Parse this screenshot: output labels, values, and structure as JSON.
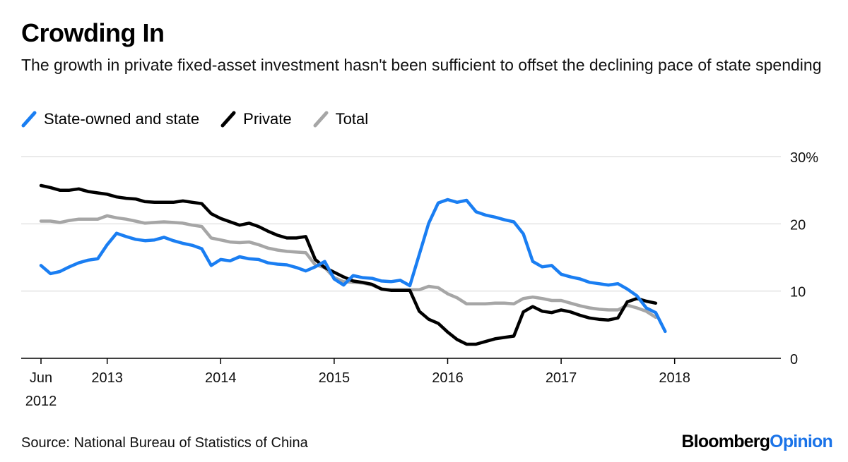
{
  "header": {
    "title": "Crowding In",
    "subtitle": "The growth in private fixed-asset investment hasn't been sufficient to offset the declining pace of state spending"
  },
  "footer": {
    "source": "Source: National Bureau of Statistics of China",
    "brand_part1": "Bloomberg",
    "brand_part2": "Opinion"
  },
  "colors": {
    "state": "#1a7ef2",
    "private": "#000000",
    "total": "#a6a6a6",
    "grid": "#e3e3e3",
    "brand_accent": "#1a73e8"
  },
  "chart_data": {
    "type": "line",
    "title": "Crowding In",
    "xlabel": "",
    "ylabel": "",
    "ylim": [
      0,
      30
    ],
    "y_ticks": [
      0,
      10,
      20,
      30
    ],
    "y_tick_labels": [
      "0",
      "10",
      "20",
      "30%"
    ],
    "x_ticks": [
      {
        "month": 2012.4167,
        "label": "Jun",
        "label2": "2012"
      },
      {
        "month": 2013,
        "label": "2013"
      },
      {
        "month": 2014,
        "label": "2014"
      },
      {
        "month": 2015,
        "label": "2015"
      },
      {
        "month": 2016,
        "label": "2016"
      },
      {
        "month": 2017,
        "label": "2017"
      },
      {
        "month": 2018,
        "label": "2018"
      }
    ],
    "x_range": [
      2012.25,
      2018.6
    ],
    "grid": true,
    "legend_position": "top-left",
    "series": [
      {
        "name": "State-owned and state",
        "color": "#1a7ef2",
        "points": [
          [
            2012.417,
            13.8
          ],
          [
            2012.5,
            12.6
          ],
          [
            2012.583,
            12.9
          ],
          [
            2012.667,
            13.6
          ],
          [
            2012.75,
            14.2
          ],
          [
            2012.833,
            14.6
          ],
          [
            2012.917,
            14.8
          ],
          [
            2013.0,
            16.9
          ],
          [
            2013.083,
            18.6
          ],
          [
            2013.167,
            18.1
          ],
          [
            2013.25,
            17.7
          ],
          [
            2013.333,
            17.5
          ],
          [
            2013.417,
            17.6
          ],
          [
            2013.5,
            18.0
          ],
          [
            2013.583,
            17.5
          ],
          [
            2013.667,
            17.1
          ],
          [
            2013.75,
            16.8
          ],
          [
            2013.833,
            16.3
          ],
          [
            2013.917,
            13.8
          ],
          [
            2014.0,
            14.7
          ],
          [
            2014.083,
            14.5
          ],
          [
            2014.167,
            15.1
          ],
          [
            2014.25,
            14.8
          ],
          [
            2014.333,
            14.7
          ],
          [
            2014.417,
            14.2
          ],
          [
            2014.5,
            14.0
          ],
          [
            2014.583,
            13.9
          ],
          [
            2014.667,
            13.5
          ],
          [
            2014.75,
            13.0
          ],
          [
            2014.833,
            13.6
          ],
          [
            2014.917,
            14.4
          ],
          [
            2015.0,
            11.8
          ],
          [
            2015.083,
            10.9
          ],
          [
            2015.167,
            12.3
          ],
          [
            2015.25,
            12.0
          ],
          [
            2015.333,
            11.9
          ],
          [
            2015.417,
            11.5
          ],
          [
            2015.5,
            11.4
          ],
          [
            2015.583,
            11.6
          ],
          [
            2015.667,
            10.8
          ],
          [
            2015.833,
            20.1
          ],
          [
            2015.917,
            23.1
          ],
          [
            2016.0,
            23.6
          ],
          [
            2016.083,
            23.2
          ],
          [
            2016.167,
            23.5
          ],
          [
            2016.25,
            21.8
          ],
          [
            2016.333,
            21.3
          ],
          [
            2016.417,
            21.0
          ],
          [
            2016.5,
            20.6
          ],
          [
            2016.583,
            20.3
          ],
          [
            2016.667,
            18.5
          ],
          [
            2016.75,
            14.4
          ],
          [
            2016.833,
            13.6
          ],
          [
            2016.917,
            13.8
          ],
          [
            2017.0,
            12.5
          ],
          [
            2017.083,
            12.1
          ],
          [
            2017.167,
            11.8
          ],
          [
            2017.25,
            11.3
          ],
          [
            2017.333,
            11.1
          ],
          [
            2017.417,
            10.9
          ],
          [
            2017.5,
            11.1
          ],
          [
            2017.583,
            10.3
          ],
          [
            2017.667,
            9.3
          ],
          [
            2017.75,
            7.5
          ],
          [
            2017.833,
            6.8
          ],
          [
            2017.917,
            4.0
          ]
        ]
      },
      {
        "name": "Private",
        "color": "#000000",
        "points": [
          [
            2012.417,
            25.7
          ],
          [
            2012.5,
            25.4
          ],
          [
            2012.583,
            25.0
          ],
          [
            2012.667,
            25.0
          ],
          [
            2012.75,
            25.2
          ],
          [
            2012.833,
            24.8
          ],
          [
            2012.917,
            24.6
          ],
          [
            2013.0,
            24.4
          ],
          [
            2013.083,
            24.0
          ],
          [
            2013.167,
            23.8
          ],
          [
            2013.25,
            23.7
          ],
          [
            2013.333,
            23.3
          ],
          [
            2013.417,
            23.2
          ],
          [
            2013.5,
            23.2
          ],
          [
            2013.583,
            23.2
          ],
          [
            2013.667,
            23.4
          ],
          [
            2013.75,
            23.2
          ],
          [
            2013.833,
            23.0
          ],
          [
            2013.917,
            21.5
          ],
          [
            2014.0,
            20.8
          ],
          [
            2014.083,
            20.3
          ],
          [
            2014.167,
            19.8
          ],
          [
            2014.25,
            20.1
          ],
          [
            2014.333,
            19.6
          ],
          [
            2014.417,
            18.9
          ],
          [
            2014.5,
            18.3
          ],
          [
            2014.583,
            17.9
          ],
          [
            2014.667,
            17.9
          ],
          [
            2014.75,
            18.1
          ],
          [
            2014.833,
            14.7
          ],
          [
            2014.917,
            13.5
          ],
          [
            2015.0,
            12.8
          ],
          [
            2015.083,
            12.1
          ],
          [
            2015.167,
            11.5
          ],
          [
            2015.25,
            11.3
          ],
          [
            2015.333,
            11.0
          ],
          [
            2015.417,
            10.3
          ],
          [
            2015.5,
            10.1
          ],
          [
            2015.583,
            10.1
          ],
          [
            2015.667,
            10.1
          ],
          [
            2015.75,
            7.0
          ],
          [
            2015.833,
            5.8
          ],
          [
            2015.917,
            5.2
          ],
          [
            2016.0,
            3.9
          ],
          [
            2016.083,
            2.8
          ],
          [
            2016.167,
            2.1
          ],
          [
            2016.25,
            2.1
          ],
          [
            2016.333,
            2.5
          ],
          [
            2016.417,
            2.9
          ],
          [
            2016.5,
            3.1
          ],
          [
            2016.583,
            3.3
          ],
          [
            2016.667,
            6.9
          ],
          [
            2016.75,
            7.7
          ],
          [
            2016.833,
            7.0
          ],
          [
            2016.917,
            6.8
          ],
          [
            2017.0,
            7.2
          ],
          [
            2017.083,
            6.9
          ],
          [
            2017.167,
            6.4
          ],
          [
            2017.25,
            6.0
          ],
          [
            2017.333,
            5.8
          ],
          [
            2017.417,
            5.7
          ],
          [
            2017.5,
            6.0
          ],
          [
            2017.583,
            8.4
          ],
          [
            2017.667,
            8.9
          ],
          [
            2017.75,
            8.5
          ],
          [
            2017.833,
            8.2
          ]
        ]
      },
      {
        "name": "Total",
        "color": "#a6a6a6",
        "points": [
          [
            2012.417,
            20.4
          ],
          [
            2012.5,
            20.4
          ],
          [
            2012.583,
            20.2
          ],
          [
            2012.667,
            20.5
          ],
          [
            2012.75,
            20.7
          ],
          [
            2012.833,
            20.7
          ],
          [
            2012.917,
            20.7
          ],
          [
            2013.0,
            21.2
          ],
          [
            2013.083,
            20.9
          ],
          [
            2013.167,
            20.7
          ],
          [
            2013.25,
            20.4
          ],
          [
            2013.333,
            20.1
          ],
          [
            2013.417,
            20.2
          ],
          [
            2013.5,
            20.3
          ],
          [
            2013.583,
            20.2
          ],
          [
            2013.667,
            20.1
          ],
          [
            2013.75,
            19.8
          ],
          [
            2013.833,
            19.6
          ],
          [
            2013.917,
            17.9
          ],
          [
            2014.0,
            17.6
          ],
          [
            2014.083,
            17.3
          ],
          [
            2014.167,
            17.2
          ],
          [
            2014.25,
            17.3
          ],
          [
            2014.333,
            16.9
          ],
          [
            2014.417,
            16.4
          ],
          [
            2014.5,
            16.1
          ],
          [
            2014.583,
            15.9
          ],
          [
            2014.667,
            15.8
          ],
          [
            2014.75,
            15.7
          ],
          [
            2014.833,
            13.9
          ],
          [
            2014.917,
            13.5
          ],
          [
            2015.0,
            12.0
          ],
          [
            2015.083,
            11.4
          ],
          [
            2015.167,
            11.3
          ],
          [
            2015.25,
            11.2
          ],
          [
            2015.333,
            10.9
          ],
          [
            2015.417,
            10.3
          ],
          [
            2015.5,
            10.2
          ],
          [
            2015.583,
            10.2
          ],
          [
            2015.667,
            10.2
          ],
          [
            2015.75,
            10.2
          ],
          [
            2015.833,
            10.7
          ],
          [
            2015.917,
            10.5
          ],
          [
            2016.0,
            9.6
          ],
          [
            2016.083,
            9.0
          ],
          [
            2016.167,
            8.1
          ],
          [
            2016.25,
            8.1
          ],
          [
            2016.333,
            8.1
          ],
          [
            2016.417,
            8.2
          ],
          [
            2016.5,
            8.2
          ],
          [
            2016.583,
            8.1
          ],
          [
            2016.667,
            8.9
          ],
          [
            2016.75,
            9.1
          ],
          [
            2016.833,
            8.9
          ],
          [
            2016.917,
            8.6
          ],
          [
            2017.0,
            8.6
          ],
          [
            2017.083,
            8.2
          ],
          [
            2017.167,
            7.8
          ],
          [
            2017.25,
            7.5
          ],
          [
            2017.333,
            7.3
          ],
          [
            2017.417,
            7.2
          ],
          [
            2017.5,
            7.2
          ],
          [
            2017.583,
            7.9
          ],
          [
            2017.667,
            7.5
          ],
          [
            2017.75,
            7.0
          ],
          [
            2017.833,
            6.1
          ]
        ]
      }
    ]
  }
}
